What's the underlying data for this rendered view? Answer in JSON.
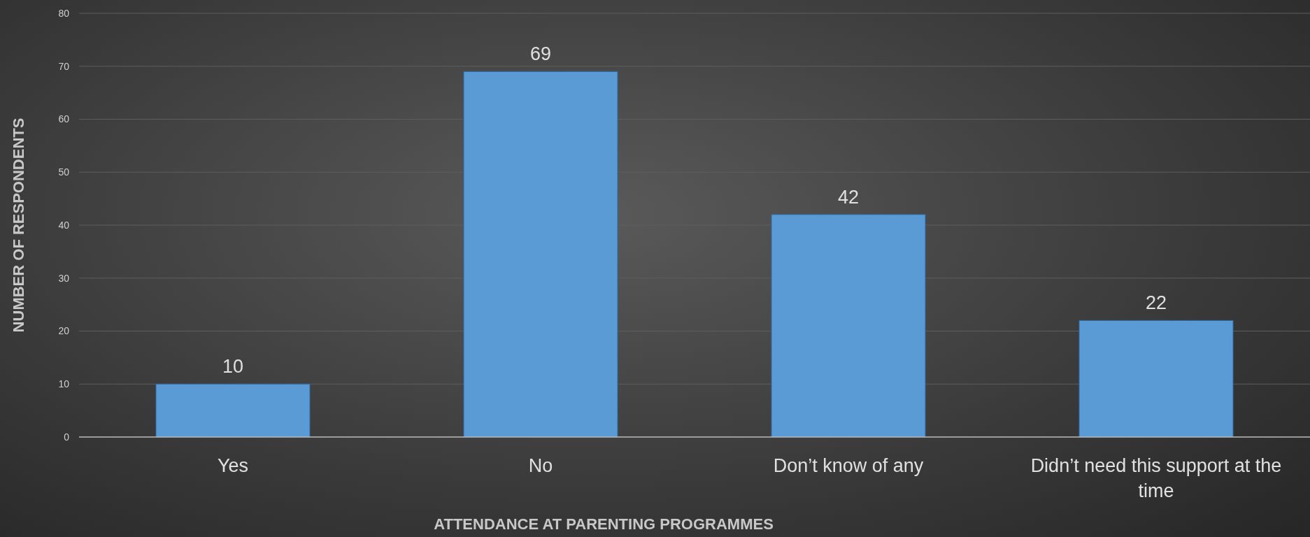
{
  "chart_data": {
    "type": "bar",
    "xlabel": "ATTENDANCE AT PARENTING PROGRAMMES",
    "ylabel": "NUMBER OF RESPONDENTS",
    "categories": [
      "Yes",
      "No",
      "Don’t know of any",
      "Didn’t need this support at the time"
    ],
    "values": [
      10,
      69,
      42,
      22
    ],
    "color": "#5b9bd5",
    "ylim": [
      0,
      80
    ],
    "yticks": [
      0,
      10,
      20,
      30,
      40,
      50,
      60,
      70,
      80
    ],
    "grid": "y",
    "data_labels": true
  }
}
